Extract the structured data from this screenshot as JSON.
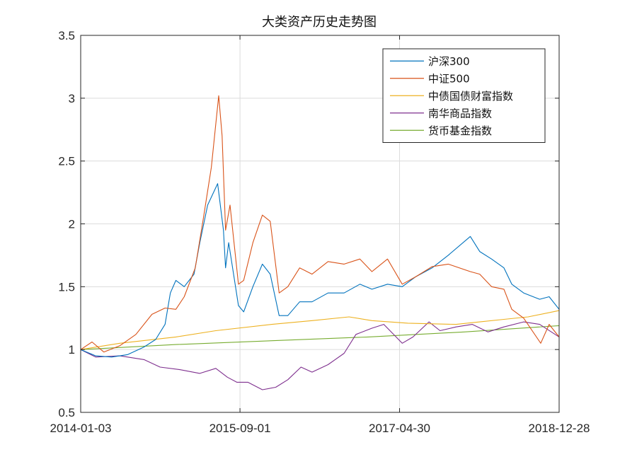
{
  "chart_data": {
    "type": "line",
    "title": "大类资产历史走势图",
    "xlabel": "",
    "ylabel": "",
    "ylim": [
      0.5,
      3.5
    ],
    "yticks": [
      "0.5",
      "1",
      "1.5",
      "2",
      "2.5",
      "3",
      "3.5"
    ],
    "x_range": [
      "2014-01-03",
      "2018-12-28"
    ],
    "xticks": [
      "2014-01-03",
      "2015-09-01",
      "2017-04-30",
      "2018-12-28"
    ],
    "grid": true,
    "legend_position": "top-right",
    "series": [
      {
        "name": "沪深300",
        "color": "#0072BD",
        "points": [
          [
            "2014-01-03",
            1.0
          ],
          [
            "2014-03-01",
            0.95
          ],
          [
            "2014-05-01",
            0.94
          ],
          [
            "2014-07-01",
            0.96
          ],
          [
            "2014-09-01",
            1.02
          ],
          [
            "2014-10-15",
            1.08
          ],
          [
            "2014-11-20",
            1.2
          ],
          [
            "2014-12-10",
            1.45
          ],
          [
            "2014-12-31",
            1.55
          ],
          [
            "2015-02-01",
            1.5
          ],
          [
            "2015-03-10",
            1.6
          ],
          [
            "2015-04-01",
            1.85
          ],
          [
            "2015-05-01",
            2.15
          ],
          [
            "2015-06-08",
            2.32
          ],
          [
            "2015-06-30",
            1.95
          ],
          [
            "2015-07-08",
            1.65
          ],
          [
            "2015-07-20",
            1.85
          ],
          [
            "2015-08-26",
            1.35
          ],
          [
            "2015-09-15",
            1.3
          ],
          [
            "2015-10-20",
            1.5
          ],
          [
            "2015-11-25",
            1.68
          ],
          [
            "2015-12-25",
            1.6
          ],
          [
            "2016-01-28",
            1.27
          ],
          [
            "2016-03-01",
            1.27
          ],
          [
            "2016-04-15",
            1.38
          ],
          [
            "2016-06-01",
            1.38
          ],
          [
            "2016-08-01",
            1.45
          ],
          [
            "2016-10-01",
            1.45
          ],
          [
            "2016-11-30",
            1.52
          ],
          [
            "2017-01-15",
            1.48
          ],
          [
            "2017-03-15",
            1.52
          ],
          [
            "2017-05-10",
            1.5
          ],
          [
            "2017-07-01",
            1.58
          ],
          [
            "2017-09-01",
            1.65
          ],
          [
            "2017-11-01",
            1.75
          ],
          [
            "2018-01-24",
            1.9
          ],
          [
            "2018-03-01",
            1.78
          ],
          [
            "2018-04-15",
            1.72
          ],
          [
            "2018-06-01",
            1.65
          ],
          [
            "2018-07-01",
            1.52
          ],
          [
            "2018-08-15",
            1.45
          ],
          [
            "2018-10-15",
            1.4
          ],
          [
            "2018-11-20",
            1.42
          ],
          [
            "2018-12-28",
            1.32
          ]
        ]
      },
      {
        "name": "中证500",
        "color": "#D95319",
        "points": [
          [
            "2014-01-03",
            1.0
          ],
          [
            "2014-02-15",
            1.06
          ],
          [
            "2014-04-01",
            0.98
          ],
          [
            "2014-06-01",
            1.03
          ],
          [
            "2014-08-01",
            1.12
          ],
          [
            "2014-10-01",
            1.28
          ],
          [
            "2014-11-20",
            1.33
          ],
          [
            "2014-12-31",
            1.32
          ],
          [
            "2015-02-01",
            1.42
          ],
          [
            "2015-03-15",
            1.65
          ],
          [
            "2015-04-15",
            2.05
          ],
          [
            "2015-05-15",
            2.45
          ],
          [
            "2015-06-12",
            3.02
          ],
          [
            "2015-06-25",
            2.7
          ],
          [
            "2015-07-08",
            1.95
          ],
          [
            "2015-07-25",
            2.15
          ],
          [
            "2015-08-26",
            1.52
          ],
          [
            "2015-09-15",
            1.55
          ],
          [
            "2015-10-20",
            1.85
          ],
          [
            "2015-11-25",
            2.07
          ],
          [
            "2015-12-25",
            2.02
          ],
          [
            "2016-01-28",
            1.45
          ],
          [
            "2016-03-01",
            1.5
          ],
          [
            "2016-04-15",
            1.65
          ],
          [
            "2016-06-01",
            1.6
          ],
          [
            "2016-08-01",
            1.7
          ],
          [
            "2016-10-01",
            1.68
          ],
          [
            "2016-11-30",
            1.72
          ],
          [
            "2017-01-15",
            1.62
          ],
          [
            "2017-03-15",
            1.72
          ],
          [
            "2017-05-10",
            1.52
          ],
          [
            "2017-07-01",
            1.58
          ],
          [
            "2017-09-01",
            1.66
          ],
          [
            "2017-11-01",
            1.68
          ],
          [
            "2018-01-24",
            1.62
          ],
          [
            "2018-03-01",
            1.6
          ],
          [
            "2018-04-15",
            1.5
          ],
          [
            "2018-06-01",
            1.48
          ],
          [
            "2018-07-01",
            1.32
          ],
          [
            "2018-08-15",
            1.25
          ],
          [
            "2018-10-19",
            1.05
          ],
          [
            "2018-11-20",
            1.2
          ],
          [
            "2018-12-28",
            1.1
          ]
        ]
      },
      {
        "name": "中债国债财富指数",
        "color": "#EDB120",
        "points": [
          [
            "2014-01-03",
            1.0
          ],
          [
            "2014-06-01",
            1.05
          ],
          [
            "2014-12-31",
            1.1
          ],
          [
            "2015-06-01",
            1.15
          ],
          [
            "2015-12-31",
            1.2
          ],
          [
            "2016-06-01",
            1.23
          ],
          [
            "2016-10-20",
            1.26
          ],
          [
            "2017-01-15",
            1.23
          ],
          [
            "2017-06-01",
            1.21
          ],
          [
            "2017-12-01",
            1.2
          ],
          [
            "2018-03-01",
            1.22
          ],
          [
            "2018-06-01",
            1.24
          ],
          [
            "2018-09-01",
            1.26
          ],
          [
            "2018-12-28",
            1.31
          ]
        ]
      },
      {
        "name": "南华商品指数",
        "color": "#7E2F8E",
        "points": [
          [
            "2014-01-03",
            1.0
          ],
          [
            "2014-03-01",
            0.94
          ],
          [
            "2014-06-01",
            0.95
          ],
          [
            "2014-09-01",
            0.92
          ],
          [
            "2014-11-01",
            0.86
          ],
          [
            "2015-01-15",
            0.84
          ],
          [
            "2015-04-01",
            0.81
          ],
          [
            "2015-06-01",
            0.85
          ],
          [
            "2015-07-15",
            0.78
          ],
          [
            "2015-08-20",
            0.74
          ],
          [
            "2015-10-01",
            0.74
          ],
          [
            "2015-11-25",
            0.68
          ],
          [
            "2016-01-15",
            0.7
          ],
          [
            "2016-03-01",
            0.76
          ],
          [
            "2016-04-20",
            0.86
          ],
          [
            "2016-06-01",
            0.82
          ],
          [
            "2016-08-01",
            0.88
          ],
          [
            "2016-10-01",
            0.97
          ],
          [
            "2016-11-15",
            1.12
          ],
          [
            "2017-01-15",
            1.17
          ],
          [
            "2017-03-01",
            1.2
          ],
          [
            "2017-05-10",
            1.05
          ],
          [
            "2017-06-20",
            1.1
          ],
          [
            "2017-08-20",
            1.22
          ],
          [
            "2017-10-01",
            1.15
          ],
          [
            "2017-12-01",
            1.18
          ],
          [
            "2018-02-01",
            1.2
          ],
          [
            "2018-04-01",
            1.14
          ],
          [
            "2018-06-01",
            1.18
          ],
          [
            "2018-08-15",
            1.22
          ],
          [
            "2018-10-15",
            1.2
          ],
          [
            "2018-12-28",
            1.1
          ]
        ]
      },
      {
        "name": "货币基金指数",
        "color": "#77AC30",
        "points": [
          [
            "2014-01-03",
            1.0
          ],
          [
            "2015-01-01",
            1.04
          ],
          [
            "2016-01-01",
            1.07
          ],
          [
            "2017-01-01",
            1.1
          ],
          [
            "2018-01-01",
            1.14
          ],
          [
            "2018-12-28",
            1.19
          ]
        ]
      }
    ]
  }
}
